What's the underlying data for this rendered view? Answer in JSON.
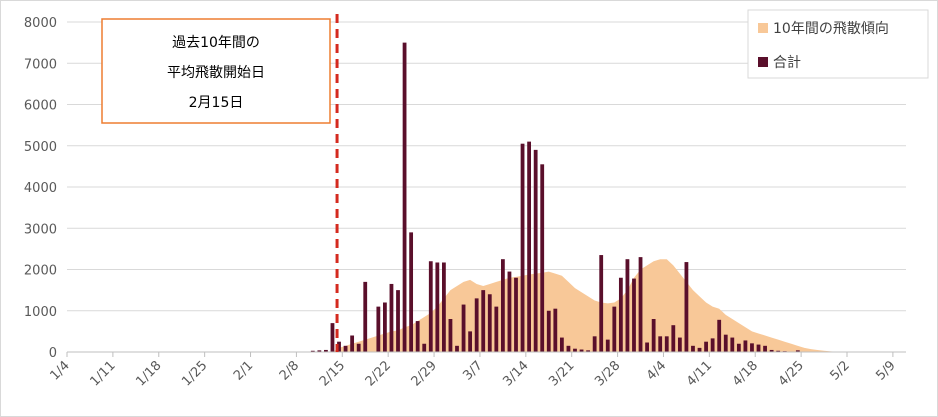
{
  "chart_data": {
    "type": "bar",
    "start_date": "1/4",
    "x_tick_labels": [
      "1/4",
      "1/11",
      "1/18",
      "1/25",
      "2/1",
      "2/8",
      "2/15",
      "2/22",
      "2/29",
      "3/7",
      "3/14",
      "3/21",
      "3/28",
      "4/4",
      "4/11",
      "4/18",
      "4/25",
      "5/2",
      "5/9"
    ],
    "ylim": [
      0,
      8000
    ],
    "y_ticks": [
      0,
      1000,
      2000,
      3000,
      4000,
      5000,
      6000,
      7000,
      8000
    ],
    "grid": true,
    "legend_position": "top-right",
    "series": [
      {
        "name": "10年間の飛散傾向",
        "kind": "area",
        "color": "#f8c898",
        "points": [
          [
            -0.5,
            0
          ],
          [
            40,
            0
          ],
          [
            41,
            100
          ],
          [
            42,
            150
          ],
          [
            43,
            200
          ],
          [
            44,
            250
          ],
          [
            45,
            300
          ],
          [
            46,
            350
          ],
          [
            47,
            400
          ],
          [
            48,
            450
          ],
          [
            49,
            500
          ],
          [
            50,
            520
          ],
          [
            51,
            600
          ],
          [
            52,
            650
          ],
          [
            53,
            750
          ],
          [
            54,
            850
          ],
          [
            55,
            950
          ],
          [
            56,
            1100
          ],
          [
            57,
            1300
          ],
          [
            58,
            1500
          ],
          [
            59,
            1600
          ],
          [
            60,
            1700
          ],
          [
            61,
            1750
          ],
          [
            62,
            1650
          ],
          [
            63,
            1600
          ],
          [
            64,
            1650
          ],
          [
            65,
            1700
          ],
          [
            66,
            1750
          ],
          [
            67,
            1800
          ],
          [
            68,
            1820
          ],
          [
            69,
            1850
          ],
          [
            70,
            1880
          ],
          [
            71,
            1900
          ],
          [
            72,
            1920
          ],
          [
            73,
            1950
          ],
          [
            74,
            1900
          ],
          [
            75,
            1850
          ],
          [
            76,
            1700
          ],
          [
            77,
            1550
          ],
          [
            78,
            1450
          ],
          [
            79,
            1350
          ],
          [
            80,
            1250
          ],
          [
            81,
            1200
          ],
          [
            82,
            1180
          ],
          [
            83,
            1200
          ],
          [
            84,
            1300
          ],
          [
            85,
            1500
          ],
          [
            86,
            1800
          ],
          [
            87,
            2000
          ],
          [
            88,
            2100
          ],
          [
            89,
            2200
          ],
          [
            90,
            2250
          ],
          [
            91,
            2250
          ],
          [
            92,
            2100
          ],
          [
            93,
            1900
          ],
          [
            94,
            1700
          ],
          [
            95,
            1500
          ],
          [
            96,
            1350
          ],
          [
            97,
            1200
          ],
          [
            98,
            1100
          ],
          [
            99,
            1050
          ],
          [
            100,
            900
          ],
          [
            101,
            800
          ],
          [
            102,
            700
          ],
          [
            103,
            600
          ],
          [
            104,
            500
          ],
          [
            105,
            450
          ],
          [
            106,
            400
          ],
          [
            107,
            350
          ],
          [
            108,
            300
          ],
          [
            109,
            250
          ],
          [
            110,
            200
          ],
          [
            111,
            150
          ],
          [
            112,
            100
          ],
          [
            113,
            70
          ],
          [
            114,
            50
          ],
          [
            115,
            30
          ],
          [
            116,
            15
          ],
          [
            117,
            5
          ],
          [
            118,
            0
          ],
          [
            135,
            0
          ]
        ]
      },
      {
        "name": "合計",
        "kind": "bar",
        "color": "#5a0f2b",
        "values": [
          [
            37,
            30
          ],
          [
            38,
            40
          ],
          [
            39,
            50
          ],
          [
            40,
            700
          ],
          [
            41,
            250
          ],
          [
            42,
            150
          ],
          [
            43,
            400
          ],
          [
            44,
            200
          ],
          [
            45,
            1700
          ],
          [
            46,
            0
          ],
          [
            47,
            1100
          ],
          [
            48,
            1200
          ],
          [
            49,
            1650
          ],
          [
            50,
            1500
          ],
          [
            51,
            7500
          ],
          [
            52,
            2900
          ],
          [
            53,
            750
          ],
          [
            54,
            200
          ],
          [
            55,
            2200
          ],
          [
            56,
            2170
          ],
          [
            57,
            2170
          ],
          [
            58,
            800
          ],
          [
            59,
            150
          ],
          [
            60,
            1150
          ],
          [
            61,
            500
          ],
          [
            62,
            1300
          ],
          [
            63,
            1500
          ],
          [
            64,
            1400
          ],
          [
            65,
            1100
          ],
          [
            66,
            2250
          ],
          [
            67,
            1950
          ],
          [
            68,
            1800
          ],
          [
            69,
            5050
          ],
          [
            70,
            5100
          ],
          [
            71,
            4900
          ],
          [
            72,
            4550
          ],
          [
            73,
            1000
          ],
          [
            74,
            1050
          ],
          [
            75,
            350
          ],
          [
            76,
            150
          ],
          [
            77,
            80
          ],
          [
            78,
            60
          ],
          [
            79,
            40
          ],
          [
            80,
            380
          ],
          [
            81,
            2350
          ],
          [
            82,
            300
          ],
          [
            83,
            1100
          ],
          [
            84,
            1800
          ],
          [
            85,
            2250
          ],
          [
            86,
            1780
          ],
          [
            87,
            2300
          ],
          [
            88,
            230
          ],
          [
            89,
            800
          ],
          [
            90,
            380
          ],
          [
            91,
            380
          ],
          [
            92,
            650
          ],
          [
            93,
            350
          ],
          [
            94,
            2180
          ],
          [
            95,
            150
          ],
          [
            96,
            100
          ],
          [
            97,
            250
          ],
          [
            98,
            330
          ],
          [
            99,
            780
          ],
          [
            100,
            420
          ],
          [
            101,
            350
          ],
          [
            102,
            200
          ],
          [
            103,
            280
          ],
          [
            104,
            210
          ],
          [
            105,
            180
          ],
          [
            106,
            150
          ],
          [
            107,
            50
          ],
          [
            108,
            30
          ],
          [
            109,
            20
          ],
          [
            110,
            10
          ],
          [
            111,
            40
          ],
          [
            112,
            5
          ]
        ]
      }
    ],
    "annotation": {
      "lines": [
        "過去10年間の",
        "平均飛散開始日",
        "2月15日"
      ],
      "marker_day": 41,
      "marker_color": "#d42a1f",
      "box_border_color": "#ed7d31"
    }
  }
}
